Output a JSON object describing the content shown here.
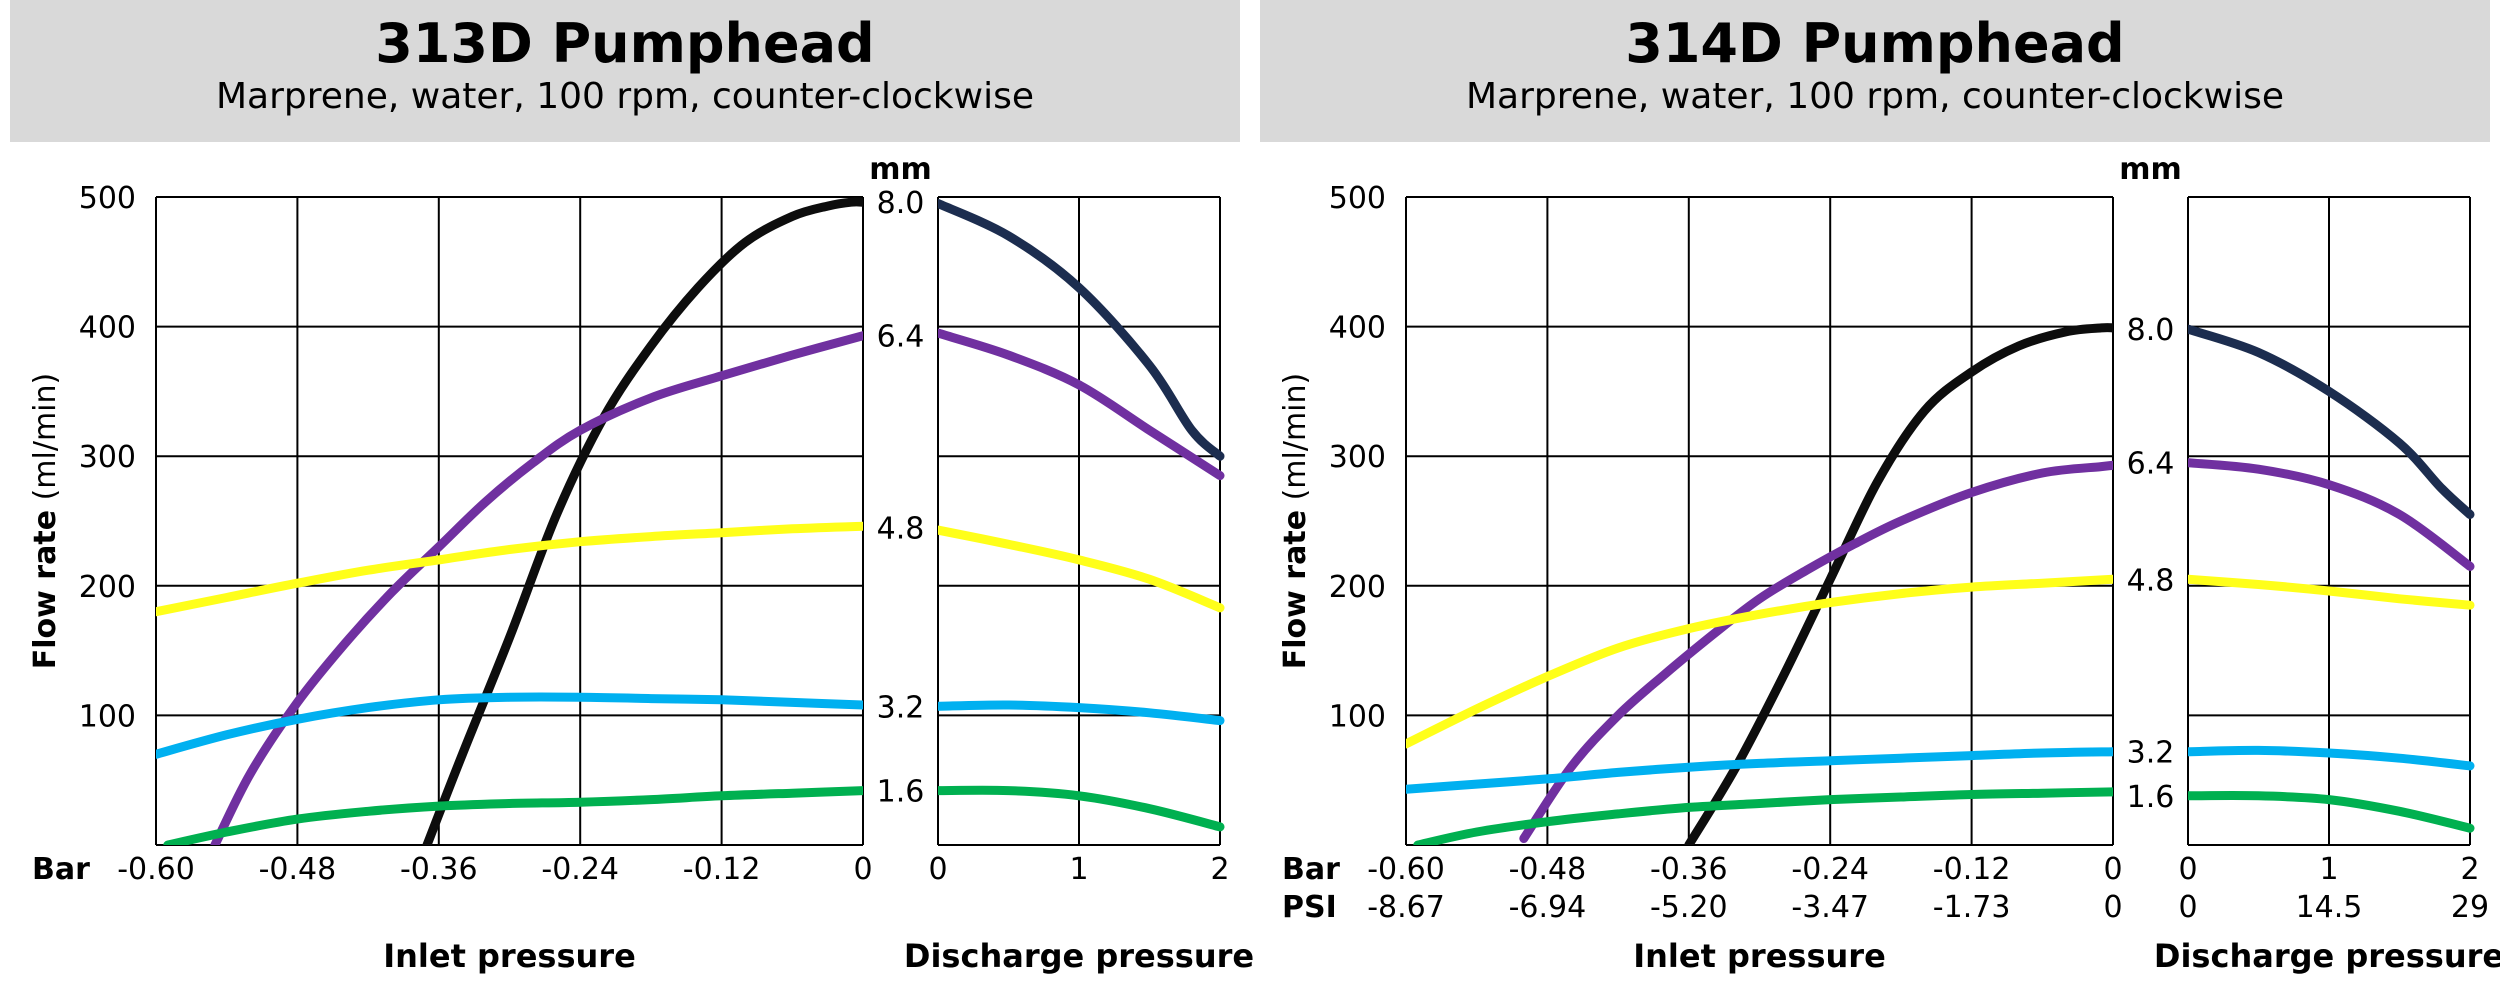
{
  "colors": {
    "8.0": "#0d0d0d",
    "6.4": "#7030a0",
    "4.8": "#ffff1a",
    "3.2": "#00b0f0",
    "1.6": "#00b050",
    "discharge_8.0": "#1c2d4f",
    "header_bg": "#d9d9d9",
    "grid": "#000000"
  },
  "chart_data": [
    {
      "type": "line",
      "title": "313D Pumphead",
      "subtitle": "Marprene, water, 100 rpm, counter-clockwise",
      "ylabel_bold": "Flow rate",
      "ylabel_unit": " (ml/min)",
      "ylim": [
        0,
        500
      ],
      "yticks": [
        100,
        200,
        300,
        400,
        500
      ],
      "inlet": {
        "xlabel": "Inlet pressure",
        "xlim": [
          -0.6,
          0
        ],
        "xticks": [
          "-0.60",
          "-0.48",
          "-0.36",
          "-0.24",
          "-0.12",
          "0"
        ],
        "psi_ticks": null,
        "series": [
          {
            "name": "8.0",
            "x": [
              -0.37,
              -0.34,
              -0.3,
              -0.26,
              -0.22,
              -0.18,
              -0.14,
              -0.1,
              -0.06,
              -0.03,
              -0.01,
              0
            ],
            "y": [
              0,
              70,
              160,
              255,
              330,
              385,
              430,
              465,
              485,
              493,
              496,
              496
            ]
          },
          {
            "name": "6.4",
            "x": [
              -0.55,
              -0.52,
              -0.48,
              -0.44,
              -0.4,
              -0.36,
              -0.32,
              -0.28,
              -0.24,
              -0.18,
              -0.12,
              -0.06,
              0
            ],
            "y": [
              0,
              55,
              110,
              155,
              195,
              230,
              265,
              295,
              320,
              345,
              362,
              378,
              393
            ]
          },
          {
            "name": "4.8",
            "x": [
              -0.6,
              -0.54,
              -0.48,
              -0.42,
              -0.36,
              -0.3,
              -0.24,
              -0.18,
              -0.12,
              -0.06,
              0
            ],
            "y": [
              180,
              191,
              202,
              212,
              220,
              228,
              234,
              238,
              241,
              244,
              246
            ]
          },
          {
            "name": "3.2",
            "x": [
              -0.6,
              -0.54,
              -0.48,
              -0.42,
              -0.36,
              -0.3,
              -0.24,
              -0.18,
              -0.12,
              -0.06,
              0
            ],
            "y": [
              70,
              85,
              97,
              106,
              112,
              114,
              114,
              113,
              112,
              110,
              108
            ]
          },
          {
            "name": "1.6",
            "x": [
              -0.59,
              -0.54,
              -0.48,
              -0.42,
              -0.36,
              -0.3,
              -0.24,
              -0.18,
              -0.12,
              -0.06,
              0
            ],
            "y": [
              0,
              10,
              20,
              26,
              30,
              32,
              33,
              35,
              38,
              40,
              42
            ]
          }
        ]
      },
      "discharge": {
        "xlabel": "Discharge pressure",
        "xlim": [
          0,
          2
        ],
        "xticks": [
          "0",
          "1",
          "2"
        ],
        "psi_ticks": null,
        "series": [
          {
            "name": "8.0",
            "x": [
              0,
              0.5,
              1.0,
              1.5,
              1.8,
              2.0
            ],
            "y": [
              495,
              470,
              430,
              370,
              320,
              300
            ]
          },
          {
            "name": "6.4",
            "x": [
              0,
              0.5,
              1.0,
              1.5,
              2.0
            ],
            "y": [
              395,
              378,
              355,
              320,
              285
            ]
          },
          {
            "name": "4.8",
            "x": [
              0,
              0.5,
              1.0,
              1.5,
              2.0
            ],
            "y": [
              243,
              232,
              220,
              205,
              183
            ]
          },
          {
            "name": "3.2",
            "x": [
              0,
              0.5,
              1.0,
              1.5,
              2.0
            ],
            "y": [
              107,
              108,
              106,
              102,
              96
            ]
          },
          {
            "name": "1.6",
            "x": [
              0,
              0.5,
              1.0,
              1.5,
              2.0
            ],
            "y": [
              42,
              42,
              38,
              28,
              14
            ]
          }
        ]
      },
      "mm_label": "mm",
      "mm_labels": [
        {
          "text": "8.0",
          "y": 496
        },
        {
          "text": "6.4",
          "y": 393
        },
        {
          "text": "4.8",
          "y": 245
        },
        {
          "text": "3.2",
          "y": 107
        },
        {
          "text": "1.6",
          "y": 42
        }
      ],
      "bar_label": "Bar",
      "psi_label": null
    },
    {
      "type": "line",
      "title": "314D Pumphead",
      "subtitle": "Marprene, water, 100 rpm, counter-clockwise",
      "ylabel_bold": "Flow rate",
      "ylabel_unit": " (ml/min)",
      "ylim": [
        0,
        500
      ],
      "yticks": [
        100,
        200,
        300,
        400,
        500
      ],
      "inlet": {
        "xlabel": "Inlet pressure",
        "xlim": [
          -0.6,
          0
        ],
        "xticks": [
          "-0.60",
          "-0.48",
          "-0.36",
          "-0.24",
          "-0.12",
          "0"
        ],
        "psi_ticks": [
          "-8.67",
          "-6.94",
          "-5.20",
          "-3.47",
          "-1.73",
          "0"
        ],
        "series": [
          {
            "name": "8.0",
            "x": [
              -0.36,
              -0.32,
              -0.28,
              -0.24,
              -0.2,
              -0.16,
              -0.12,
              -0.08,
              -0.04,
              -0.01,
              0
            ],
            "y": [
              0,
              60,
              130,
              205,
              280,
              335,
              365,
              385,
              396,
              399,
              399
            ]
          },
          {
            "name": "6.4",
            "x": [
              -0.5,
              -0.46,
              -0.42,
              -0.38,
              -0.34,
              -0.3,
              -0.26,
              -0.22,
              -0.18,
              -0.12,
              -0.06,
              -0.01,
              0
            ],
            "y": [
              5,
              60,
              100,
              132,
              162,
              190,
              212,
              232,
              250,
              272,
              287,
              292,
              293
            ]
          },
          {
            "name": "4.8",
            "x": [
              -0.6,
              -0.54,
              -0.48,
              -0.42,
              -0.36,
              -0.3,
              -0.24,
              -0.18,
              -0.12,
              -0.06,
              0
            ],
            "y": [
              78,
              105,
              130,
              152,
              167,
              178,
              187,
              194,
              199,
              202,
              205
            ]
          },
          {
            "name": "3.2",
            "x": [
              -0.6,
              -0.54,
              -0.48,
              -0.42,
              -0.36,
              -0.3,
              -0.24,
              -0.18,
              -0.12,
              -0.06,
              0
            ],
            "y": [
              43,
              47,
              51,
              56,
              60,
              63,
              65,
              67,
              69,
              71,
              72
            ]
          },
          {
            "name": "1.6",
            "x": [
              -0.59,
              -0.54,
              -0.48,
              -0.42,
              -0.36,
              -0.3,
              -0.24,
              -0.18,
              -0.12,
              -0.06,
              0
            ],
            "y": [
              0,
              10,
              18,
              24,
              29,
              32,
              35,
              37,
              39,
              40,
              41
            ]
          }
        ]
      },
      "discharge": {
        "xlabel": "Discharge pressure",
        "xlim": [
          0,
          2
        ],
        "xticks": [
          "0",
          "1",
          "2"
        ],
        "psi_ticks": [
          "0",
          "14.5",
          "29"
        ],
        "series": [
          {
            "name": "8.0",
            "x": [
              0,
              0.5,
              1.0,
              1.5,
              1.8,
              2.0
            ],
            "y": [
              398,
              380,
              350,
              310,
              275,
              255
            ]
          },
          {
            "name": "6.4",
            "x": [
              0,
              0.5,
              1.0,
              1.5,
              2.0
            ],
            "y": [
              295,
              290,
              278,
              255,
              215
            ]
          },
          {
            "name": "4.8",
            "x": [
              0,
              0.5,
              1.0,
              1.5,
              2.0
            ],
            "y": [
              205,
              201,
              196,
              190,
              185
            ]
          },
          {
            "name": "3.2",
            "x": [
              0,
              0.5,
              1.0,
              1.5,
              2.0
            ],
            "y": [
              72,
              73,
              71,
              67,
              61
            ]
          },
          {
            "name": "1.6",
            "x": [
              0,
              0.5,
              1.0,
              1.5,
              2.0
            ],
            "y": [
              38,
              38,
              35,
              26,
              13
            ]
          }
        ]
      },
      "mm_label": "mm",
      "mm_labels": [
        {
          "text": "8.0",
          "y": 398
        },
        {
          "text": "6.4",
          "y": 295
        },
        {
          "text": "4.8",
          "y": 205
        },
        {
          "text": "3.2",
          "y": 72
        },
        {
          "text": "1.6",
          "y": 38
        }
      ],
      "bar_label": "Bar",
      "psi_label": "PSI"
    }
  ]
}
